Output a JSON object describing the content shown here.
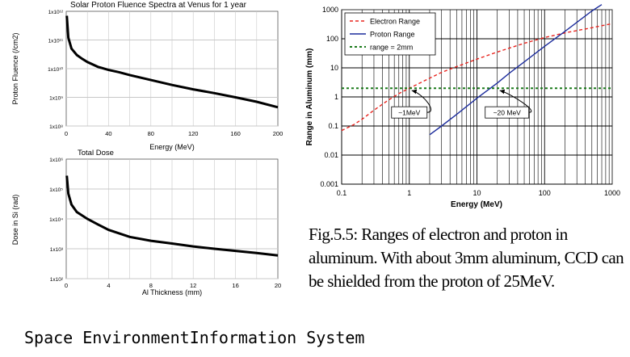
{
  "chart_data": [
    {
      "id": "fluence",
      "type": "line",
      "title": "Solar Proton Fluence Spectra at Venus for 1 year",
      "xlabel": "Energy (MeV)",
      "ylabel": "Proton Fluence (/cm2)",
      "xlim": [
        0,
        200
      ],
      "ylim": [
        100000000.0,
        1000000000000.0
      ],
      "yscale": "log",
      "x_ticks": [
        "0",
        "40",
        "80",
        "120",
        "160",
        "200"
      ],
      "y_ticks": [
        "1x10⁸",
        "1x10⁹",
        "1x10¹⁰",
        "1x10¹¹",
        "1x10¹²"
      ],
      "grid": true,
      "series": [
        {
          "color": "#000000",
          "x": [
            0.5,
            2,
            5,
            10,
            15,
            20,
            30,
            40,
            50,
            60,
            80,
            100,
            120,
            140,
            160,
            180,
            200
          ],
          "y": [
            700000000000.0,
            120000000000.0,
            50000000000.0,
            30000000000.0,
            22000000000.0,
            17000000000.0,
            11500000000.0,
            9000000000.0,
            7500000000.0,
            6000000000.0,
            4000000000.0,
            2700000000.0,
            1900000000.0,
            1400000000.0,
            1000000000.0,
            700000000.0,
            450000000.0
          ]
        }
      ]
    },
    {
      "id": "dose",
      "type": "line",
      "title": "Total Dose",
      "xlabel": "Al Thickness (mm)",
      "ylabel": "Dose in Si (rad)",
      "xlim": [
        0,
        20
      ],
      "ylim": [
        100,
        1000000
      ],
      "yscale": "log",
      "x_ticks": [
        "0",
        "4",
        "8",
        "12",
        "16",
        "20"
      ],
      "y_ticks": [
        "1x10²",
        "1x10³",
        "1x10⁴",
        "1x10⁵",
        "1x10⁶"
      ],
      "grid": true,
      "series": [
        {
          "color": "#000000",
          "x": [
            0.05,
            0.2,
            0.5,
            1,
            2,
            3,
            4,
            6,
            8,
            10,
            12,
            14,
            16,
            18,
            20
          ],
          "y": [
            280000,
            70000,
            30000,
            17000,
            10000,
            6500,
            4300,
            2500,
            1850,
            1500,
            1200,
            1000,
            850,
            720,
            600
          ]
        }
      ]
    },
    {
      "id": "range",
      "type": "line",
      "title": "",
      "xlabel": "Energy (MeV)",
      "ylabel": "Range in Aluminum (mm)",
      "xscale": "log",
      "yscale": "log",
      "xlim": [
        0.1,
        1000
      ],
      "ylim": [
        0.001,
        1000
      ],
      "x_ticks": [
        "0.1",
        "1",
        "10",
        "100",
        "1000"
      ],
      "y_ticks": [
        "0.001",
        "0.01",
        "0.1",
        "1",
        "10",
        "100",
        "1000"
      ],
      "grid": true,
      "legend_position": "top-left",
      "series": [
        {
          "name": "Electron Range",
          "color": "#e8251f",
          "style": "dashed",
          "x": [
            0.1,
            0.15,
            0.2,
            0.3,
            0.5,
            0.7,
            1,
            2,
            3,
            5,
            10,
            20,
            50,
            100,
            200,
            500,
            1000
          ],
          "y": [
            0.07,
            0.11,
            0.17,
            0.35,
            0.8,
            1.3,
            2.0,
            4.4,
            7,
            11,
            20,
            35,
            70,
            110,
            160,
            240,
            330
          ]
        },
        {
          "name": "Proton Range",
          "color": "#1c2c9c",
          "style": "solid",
          "x": [
            2,
            3,
            5,
            10,
            20,
            30,
            50,
            100,
            200,
            500,
            700
          ],
          "y": [
            0.05,
            0.1,
            0.25,
            0.9,
            3.0,
            6.5,
            16,
            55,
            180,
            900,
            1500
          ]
        },
        {
          "name": "range = 2mm",
          "color": "#1a7a1a",
          "style": "dotted",
          "x": [
            0.1,
            1000
          ],
          "y": [
            2,
            2
          ]
        }
      ],
      "annotations": [
        {
          "text": "~1MeV",
          "x": 1,
          "y": 2
        },
        {
          "text": "~20 MeV",
          "x": 20,
          "y": 2
        }
      ]
    }
  ],
  "caption": "Fig.5.5: Ranges of electron and  proton in aluminum. With about 3mm aluminum, CCD can be shielded from the proton of 25MeV.",
  "footer": "Space EnvironmentInformation System"
}
